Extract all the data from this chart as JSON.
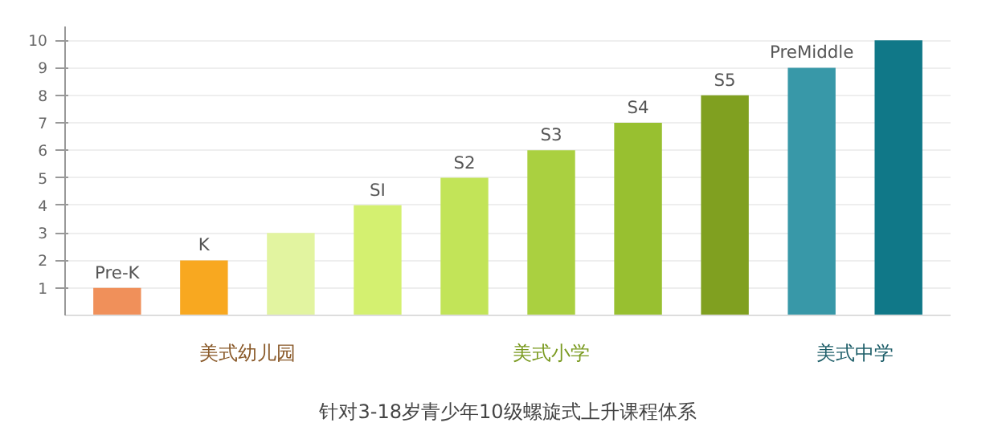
{
  "chart_data": {
    "type": "bar",
    "title": "针对3-18岁青少年10级螺旋式上升课程体系",
    "categories": [
      "Pre-K",
      "K",
      null,
      "SI",
      "S2",
      "S3",
      "S4",
      "S5",
      "PreMiddle",
      null
    ],
    "values": [
      1,
      2,
      3,
      4,
      5,
      6,
      7,
      8,
      9,
      10
    ],
    "colors": [
      "#f0905a",
      "#f8a820",
      "#e2f4a0",
      "#d4f070",
      "#c2e458",
      "#aad040",
      "#98c030",
      "#80a020",
      "#3898a8",
      "#107888"
    ],
    "ylim": [
      0,
      10.5
    ],
    "yticks": [
      1,
      2,
      3,
      4,
      5,
      6,
      7,
      8,
      9,
      10
    ],
    "grid": "y",
    "annotations": [
      "美式幼儿园",
      "美式小学",
      "美式中学"
    ]
  }
}
